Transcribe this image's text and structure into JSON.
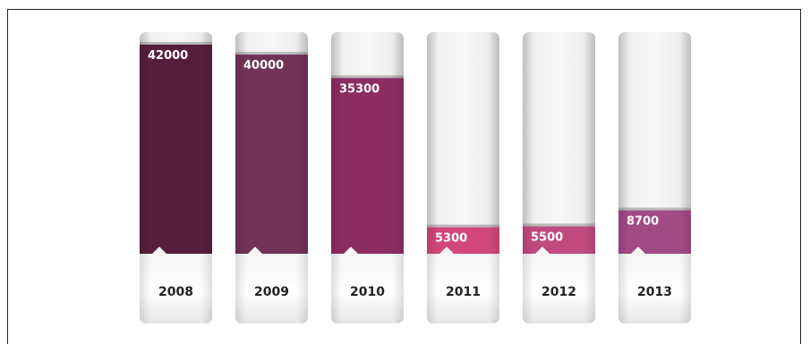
{
  "chart_data": {
    "type": "bar",
    "categories": [
      "2008",
      "2009",
      "2010",
      "2011",
      "2012",
      "2013"
    ],
    "values": [
      42000,
      40000,
      35300,
      5300,
      5500,
      8700
    ],
    "ylim": [
      0,
      44500
    ],
    "title": "",
    "xlabel": "",
    "ylabel": "",
    "grid": false,
    "colors": [
      "#571e3b",
      "#723359",
      "#8c2d62",
      "#d2477a",
      "#c04a80",
      "#a24a86"
    ]
  }
}
